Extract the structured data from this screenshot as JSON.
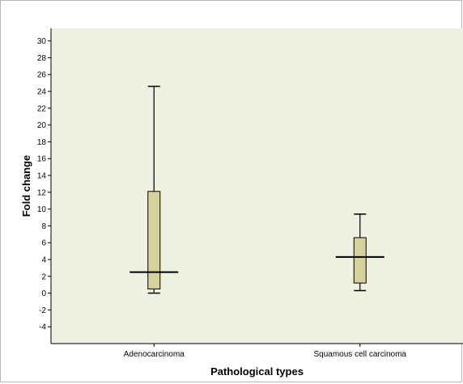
{
  "chart_data": {
    "type": "box",
    "title": "",
    "xlabel": "Pathological types",
    "ylabel": "Fold change",
    "categories": [
      "Adenocarcinoma",
      "Squamous cell carcinoma"
    ],
    "boxes": [
      {
        "category": "Adenocarcinoma",
        "min": 0,
        "q1": 0.5,
        "median": 2.5,
        "q3": 12.1,
        "max": 24.6
      },
      {
        "category": "Squamous cell carcinoma",
        "min": 0.3,
        "q1": 1.2,
        "median": 4.3,
        "q3": 6.6,
        "max": 9.4
      }
    ],
    "y_ticks": [
      -4,
      -2,
      0,
      2,
      4,
      6,
      8,
      10,
      12,
      14,
      16,
      18,
      20,
      22,
      24,
      26,
      28,
      30
    ],
    "ylim": [
      -6,
      31.5
    ],
    "grid": false,
    "colors": {
      "plot_background": "#f0f0e0",
      "box_fill": "#d6d29e",
      "outline": "#000000"
    }
  }
}
